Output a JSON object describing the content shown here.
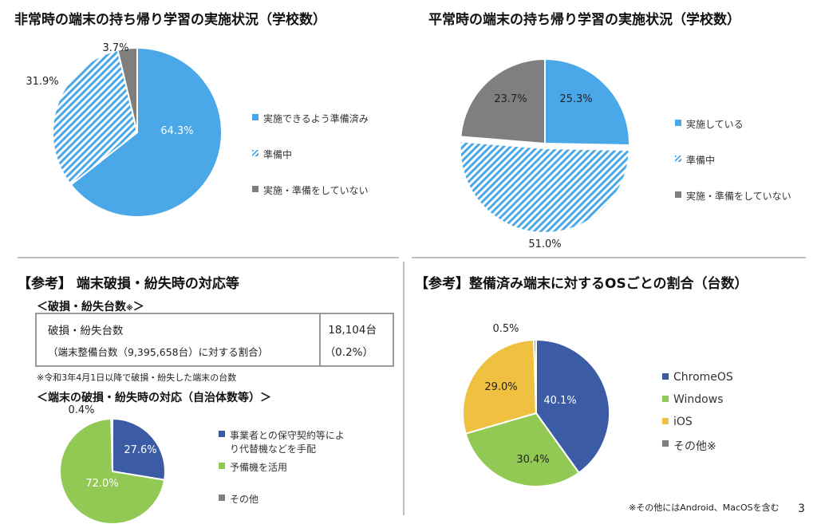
{
  "page_number": "3",
  "chart_data": [
    {
      "id": "emergency",
      "type": "pie",
      "title": "非常時の端末の持ち帰り学習の実施状況（学校数）",
      "slices": [
        {
          "label": "実施できるよう準備済み",
          "value": 64.3,
          "display": "64.3%",
          "color": "#4aa8e8",
          "pattern": "solid"
        },
        {
          "label": "準備中",
          "value": 31.9,
          "display": "31.9%",
          "color": "#4aa8e8",
          "pattern": "hatch"
        },
        {
          "label": "実施・準備をしていない",
          "value": 3.7,
          "display": "3.7%",
          "color": "#7f7f7f",
          "pattern": "solid"
        }
      ],
      "legend_position": "right"
    },
    {
      "id": "normal",
      "type": "pie",
      "title": "平常時の端末の持ち帰り学習の実施状況（学校数）",
      "slices": [
        {
          "label": "実施している",
          "value": 25.3,
          "display": "25.3%",
          "color": "#4aa8e8",
          "pattern": "solid"
        },
        {
          "label": "準備中",
          "value": 51.0,
          "display": "51.0%",
          "color": "#4aa8e8",
          "pattern": "hatch"
        },
        {
          "label": "実施・準備をしていない",
          "value": 23.7,
          "display": "23.7%",
          "color": "#7f7f7f",
          "pattern": "solid"
        }
      ],
      "legend_position": "right"
    },
    {
      "id": "response",
      "type": "pie",
      "title": "＜端末の破損・紛失時の対応（自治体数等）＞",
      "slices": [
        {
          "label": "事業者との保守契約等により代替機などを手配",
          "value": 27.6,
          "display": "27.6%",
          "color": "#3b5ba5",
          "pattern": "solid"
        },
        {
          "label": "予備機を活用",
          "value": 72.0,
          "display": "72.0%",
          "color": "#92c954",
          "pattern": "solid"
        },
        {
          "label": "その他",
          "value": 0.4,
          "display": "0.4%",
          "color": "#7f7f7f",
          "pattern": "solid"
        }
      ],
      "legend_position": "right"
    },
    {
      "id": "os",
      "type": "pie",
      "title": "【参考】整備済み端末に対するOSごとの割合（台数）",
      "slices": [
        {
          "label": "ChromeOS",
          "value": 40.1,
          "display": "40.1%",
          "color": "#3b5ba5",
          "pattern": "solid"
        },
        {
          "label": "Windows",
          "value": 30.4,
          "display": "30.4%",
          "color": "#92c954",
          "pattern": "solid"
        },
        {
          "label": "iOS",
          "value": 29.0,
          "display": "29.0%",
          "color": "#f0c040",
          "pattern": "solid"
        },
        {
          "label": "その他※",
          "value": 0.5,
          "display": "0.5%",
          "color": "#7f7f7f",
          "pattern": "solid"
        }
      ],
      "legend_position": "right"
    }
  ],
  "reference_section": {
    "title": "【参考】 端末破損・紛失時の対応等",
    "loss_subtitle": "＜破損・紛失台数",
    "loss_subtitle_mark": "※",
    "loss_subtitle_close": "＞",
    "table": {
      "row1_label": "破損・紛失台数",
      "row1_value": "18,104台",
      "row2_label": "（端末整備台数（9,395,658台）に対する割合）",
      "row2_value": "（0.2%）"
    },
    "footnote": "※令和3年4月1日以降で破損・紛失した端末の台数"
  },
  "os_footnote": "※その他にはAndroid、MacOSを含む",
  "colors": {
    "blue": "#4aa8e8",
    "gray": "#7f7f7f",
    "navy": "#3b5ba5",
    "green": "#92c954",
    "yellow": "#f0c040"
  }
}
